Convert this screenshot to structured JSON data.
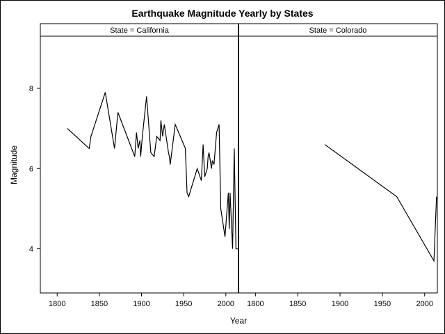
{
  "chart_data": {
    "type": "line",
    "title": "Earthquake Magnitude Yearly by States",
    "xlabel": "Year",
    "ylabel": "Magnitude",
    "xlim": [
      1780,
      2015
    ],
    "ylim": [
      2.9,
      9.3
    ],
    "x_ticks": [
      1800,
      1850,
      1900,
      1950,
      2000
    ],
    "y_ticks": [
      4,
      6,
      8
    ],
    "panels": [
      {
        "label": "State = California",
        "series": [
          {
            "x": [
              1812,
              1838,
              1840,
              1857,
              1868,
              1872,
              1892,
              1894,
              1896,
              1898,
              1899,
              1901,
              1906,
              1911,
              1915,
              1918,
              1922,
              1923,
              1925,
              1927,
              1932,
              1933,
              1934,
              1940,
              1952,
              1954,
              1956,
              1966,
              1971,
              1973,
              1975,
              1978,
              1979,
              1980,
              1983,
              1984,
              1986,
              1989,
              1992,
              1994,
              1999,
              2003,
              2004,
              2005,
              2008,
              2010,
              2012,
              2014
            ],
            "y": [
              7.0,
              6.5,
              6.8,
              7.9,
              6.5,
              7.4,
              6.3,
              6.9,
              6.5,
              6.7,
              6.3,
              6.8,
              7.8,
              6.4,
              6.3,
              6.8,
              6.7,
              7.2,
              6.8,
              7.1,
              6.4,
              6.3,
              6.1,
              7.1,
              6.5,
              5.4,
              5.3,
              6.0,
              5.7,
              6.6,
              5.8,
              6.0,
              6.3,
              6.4,
              6.0,
              6.2,
              6.1,
              6.9,
              7.1,
              5.0,
              4.3,
              5.4,
              4.5,
              5.4,
              4.0,
              6.5,
              4.0,
              4.0
            ]
          }
        ]
      },
      {
        "label": "State = Colorado",
        "series": [
          {
            "x": [
              1882,
              1967,
              2011,
              2014
            ],
            "y": [
              6.6,
              5.3,
              3.7,
              5.3
            ]
          }
        ]
      }
    ]
  }
}
